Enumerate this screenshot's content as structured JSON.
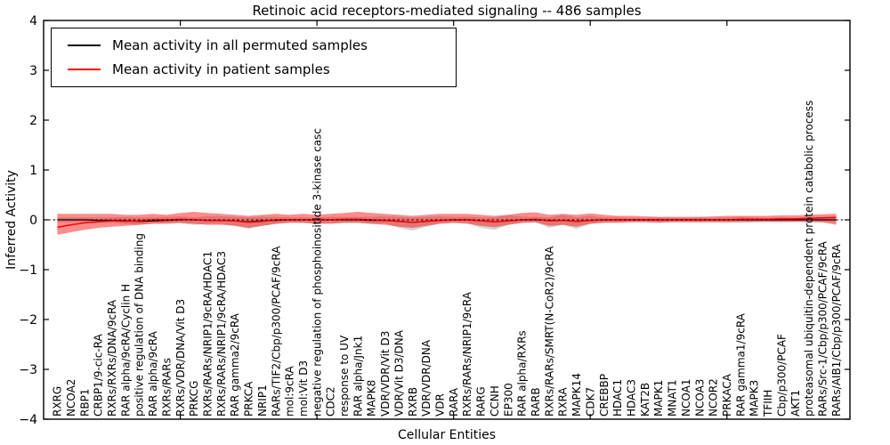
{
  "title": "Retinoic acid receptors-mediated signaling -- 486 samples",
  "axes": {
    "xlabel": "Cellular Entities",
    "ylabel": "Inferred Activity"
  },
  "legend": [
    {
      "label": "Mean activity in all permuted samples",
      "color": "#000000"
    },
    {
      "label": "Mean activity in patient samples",
      "color": "#ff0000"
    }
  ],
  "chart_data": {
    "type": "line",
    "title": "Retinoic acid receptors-mediated signaling -- 486 samples",
    "xlabel": "Cellular Entities",
    "ylabel": "Inferred Activity",
    "ylim": [
      -4,
      4
    ],
    "yticks": [
      -4,
      -3,
      -2,
      -1,
      0,
      1,
      2,
      3,
      4
    ],
    "legend_position": "upper left",
    "zero_line": "dashed-black",
    "grid": false,
    "categories": [
      "RXRG",
      "NCOA2",
      "RBP1",
      "CRBP1/9-cic-RA",
      "RXRs/RXRs/DNA/9cRA",
      "RAR alpha/9cRA/Cyclin H",
      "positive regulation of DNA binding",
      "RAR alpha/9cRA",
      "RXRs/RARs",
      "RXRs/VDR/DNA/Vit D3",
      "PRKCG",
      "RXRs/RARs/NRIP1/9cRA/HDAC1",
      "RXRs/RARs/NRIP1/9cRA/HDAC3",
      "RAR gamma2/9cRA",
      "PRKCA",
      "NRIP1",
      "RARs/TIF2/Cbp/p300/PCAF/9cRA",
      "mol:9cRA",
      "mol:Vit D3",
      "negative regulation of phosphoinositide 3-kinase casc",
      "CDC2",
      "response to UV",
      "RAR alpha/Jnk1",
      "MAPK8",
      "VDR/VDR/Vit D3",
      "VDR/Vit D3/DNA",
      "RXRB",
      "VDR/VDR/DNA",
      "VDR",
      "RARA",
      "RXRs/RARs/NRIP1/9cRA",
      "RARG",
      "CCNH",
      "EP300",
      "RAR alpha/RXRs",
      "RARB",
      "RXRs/RARs/SMRT(N-CoR2)/9cRA",
      "RXRA",
      "MAPK14",
      "CDK7",
      "CREBBP",
      "HDAC1",
      "HDAC3",
      "KAT2B",
      "MAPK1",
      "MNAT1",
      "NCOA1",
      "NCOA3",
      "NCOR2",
      "PRKACA",
      "RAR gamma1/9cRA",
      "MAPK3",
      "TFIIH",
      "Cbp/p300/PCAF",
      "AKT1",
      "proteasomal ubiquitin-dependent protein catabolic process",
      "RARs/Src-1/Cbp/p300/PCAF/9cRA",
      "RARs/AIB1/Cbp/p300/PCAF/9cRA"
    ],
    "series": [
      {
        "name": "Mean activity in all permuted samples",
        "color": "#000000",
        "band_color": "rgba(128,128,128,0.35)",
        "values": [
          0,
          0,
          0,
          -0.01,
          -0.01,
          -0.02,
          -0.03,
          -0.02,
          -0.01,
          0,
          0,
          -0.01,
          -0.01,
          -0.02,
          -0.04,
          -0.02,
          -0.01,
          0,
          0,
          0,
          0,
          0,
          0,
          -0.01,
          -0.01,
          -0.03,
          -0.05,
          -0.03,
          -0.01,
          0,
          0,
          -0.02,
          -0.04,
          -0.02,
          0,
          0,
          -0.01,
          -0.01,
          -0.03,
          -0.01,
          0,
          0,
          0,
          0,
          0,
          0,
          0,
          0,
          0,
          0,
          0,
          0,
          0,
          0,
          0,
          0,
          0,
          0
        ],
        "band_upper": [
          0.05,
          0.05,
          0.05,
          0.05,
          0.05,
          0.06,
          0.05,
          0.05,
          0.06,
          0.07,
          0.05,
          0.08,
          0.07,
          0.06,
          0.05,
          0.06,
          0.06,
          0.05,
          0.05,
          0.05,
          0.06,
          0.06,
          0.06,
          0.06,
          0.07,
          0.06,
          0.05,
          0.06,
          0.07,
          0.06,
          0.06,
          0.05,
          0.05,
          0.1,
          0.06,
          0.06,
          0.05,
          0.1,
          0.05,
          0.08,
          0.05,
          0.05,
          0.04,
          0.04,
          0.05,
          0.04,
          0.04,
          0.05,
          0.04,
          0.05,
          0.06,
          0.05,
          0.04,
          0.05,
          0.04,
          0.05,
          0.05,
          0.06
        ],
        "band_lower": [
          -0.05,
          -0.05,
          -0.05,
          -0.06,
          -0.06,
          -0.08,
          -0.1,
          -0.07,
          -0.06,
          -0.07,
          -0.1,
          -0.08,
          -0.08,
          -0.12,
          -0.18,
          -0.12,
          -0.08,
          -0.05,
          -0.06,
          -0.08,
          -0.06,
          -0.06,
          -0.06,
          -0.08,
          -0.07,
          -0.16,
          -0.22,
          -0.14,
          -0.07,
          -0.06,
          -0.06,
          -0.16,
          -0.2,
          -0.1,
          -0.06,
          -0.05,
          -0.16,
          -0.1,
          -0.18,
          -0.08,
          -0.05,
          -0.05,
          -0.04,
          -0.04,
          -0.05,
          -0.04,
          -0.04,
          -0.05,
          -0.04,
          -0.05,
          -0.06,
          -0.05,
          -0.04,
          -0.05,
          -0.04,
          -0.05,
          -0.05,
          -0.06
        ]
      },
      {
        "name": "Mean activity in patient samples",
        "color": "#ff0000",
        "band_color": "rgba(255,0,0,0.45)",
        "values": [
          -0.15,
          -0.1,
          -0.06,
          -0.04,
          -0.02,
          -0.03,
          -0.02,
          0,
          0,
          0.01,
          0,
          -0.01,
          -0.01,
          -0.02,
          -0.05,
          -0.03,
          0,
          0,
          0,
          0,
          0,
          0.01,
          0.01,
          0,
          -0.01,
          -0.03,
          -0.05,
          -0.03,
          -0.01,
          0,
          0,
          -0.02,
          -0.04,
          -0.02,
          0,
          0.01,
          -0.02,
          -0.01,
          -0.03,
          -0.01,
          0,
          0,
          0,
          0,
          0,
          0,
          0,
          0,
          0,
          0,
          0.01,
          0.01,
          0.01,
          0.02,
          0.02,
          0.03,
          0.04,
          0.05
        ],
        "band_upper": [
          0.12,
          0.12,
          0.12,
          0.12,
          0.12,
          0.1,
          0.1,
          0.12,
          0.1,
          0.14,
          0.16,
          0.14,
          0.12,
          0.1,
          0.08,
          0.1,
          0.12,
          0.1,
          0.12,
          0.1,
          0.12,
          0.14,
          0.16,
          0.14,
          0.12,
          0.1,
          0.08,
          0.1,
          0.12,
          0.12,
          0.12,
          0.1,
          0.08,
          0.1,
          0.14,
          0.15,
          0.1,
          0.12,
          0.1,
          0.13,
          0.1,
          0.08,
          0.08,
          0.07,
          0.06,
          0.06,
          0.06,
          0.06,
          0.07,
          0.08,
          0.08,
          0.08,
          0.08,
          0.09,
          0.09,
          0.1,
          0.11,
          0.12
        ],
        "band_lower": [
          -0.3,
          -0.25,
          -0.2,
          -0.16,
          -0.14,
          -0.12,
          -0.1,
          -0.08,
          -0.08,
          -0.06,
          -0.08,
          -0.1,
          -0.1,
          -0.12,
          -0.16,
          -0.12,
          -0.08,
          -0.06,
          -0.06,
          -0.08,
          -0.08,
          -0.06,
          -0.06,
          -0.08,
          -0.1,
          -0.14,
          -0.16,
          -0.12,
          -0.08,
          -0.06,
          -0.08,
          -0.12,
          -0.15,
          -0.1,
          -0.06,
          -0.05,
          -0.12,
          -0.1,
          -0.14,
          -0.08,
          -0.06,
          -0.06,
          -0.05,
          -0.05,
          -0.06,
          -0.05,
          -0.05,
          -0.05,
          -0.05,
          -0.05,
          -0.04,
          -0.04,
          -0.04,
          -0.04,
          -0.04,
          -0.04,
          -0.05,
          -0.1
        ]
      }
    ]
  }
}
